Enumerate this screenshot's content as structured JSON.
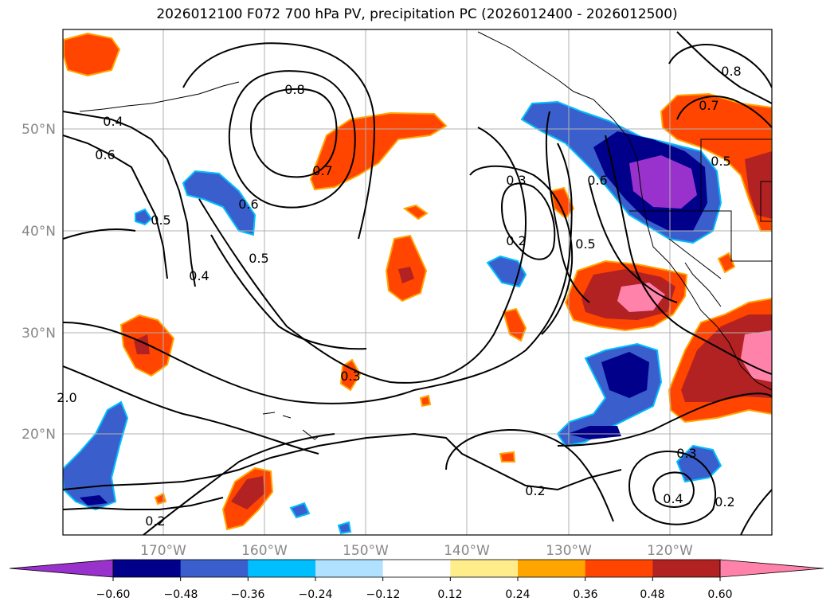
{
  "title": "2026012100 F072 700 hPa PV, precipitation PC (2026012400 - 2026012500)",
  "latitude_labels": [
    "50°N",
    "40°N",
    "30°N",
    "20°N"
  ],
  "longitude_labels": [
    "170°W",
    "160°W",
    "150°W",
    "140°W",
    "130°W",
    "120°W"
  ],
  "contour_labels": [
    "0.8",
    "0.4",
    "0.6",
    "0.7",
    "0.6",
    "0.5",
    "0.5",
    "0.4",
    "0.3",
    "0.2",
    "0.3",
    "0.6",
    "0.5",
    "0.8",
    "0.7",
    "0.5",
    "0.2",
    "0.3",
    "0.4",
    "0.2",
    "0.2",
    "2.0"
  ],
  "colorbar": {
    "tick_labels": [
      "−0.60",
      "−0.48",
      "−0.36",
      "−0.24",
      "−0.12",
      "0.12",
      "0.24",
      "0.36",
      "0.48",
      "0.60"
    ],
    "colors": [
      "#9932cc",
      "#00008b",
      "#3a5fcd",
      "#00bfff",
      "#b0e2ff",
      "#ffffff",
      "#ffec8b",
      "#ffa500",
      "#ff4500",
      "#b22222",
      "#ff82ab"
    ]
  },
  "colors": {
    "grid": "#b0b0b0",
    "contour": "#000000",
    "tick_text": "#888888"
  }
}
